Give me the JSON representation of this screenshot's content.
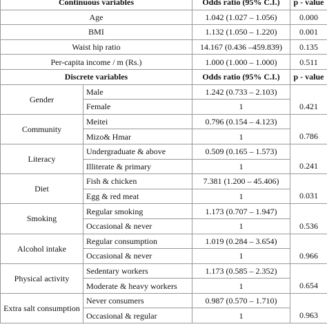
{
  "continuous": {
    "header": [
      "Continuous variables",
      "Odds ratio (95% C.I.)",
      "p - value"
    ],
    "rows": [
      [
        "Age",
        "1.042 (1.027 – 1.056)",
        "0.000"
      ],
      [
        "BMI",
        "1.132 (1.050 – 1.220)",
        "0.001"
      ],
      [
        "Waist hip ratio",
        "14.167 (0.436 –459.839)",
        "0.135"
      ],
      [
        "Per-capita income / m (Rs.)",
        "1.000 (1.000 – 1.000)",
        "0.511"
      ]
    ]
  },
  "discrete": {
    "header": [
      "Discrete variables",
      "Odds ratio (95% C.I.)",
      "p - value"
    ],
    "groups": [
      {
        "label": "Gender",
        "rows": [
          [
            "Male",
            "1.242 (0.733 – 2.103)"
          ],
          [
            "Female",
            "1"
          ]
        ],
        "p": "0.421"
      },
      {
        "label": "Community",
        "rows": [
          [
            "Meitei",
            "0.796 (0.154 – 4.123)"
          ],
          [
            "Mizo& Hmar",
            "1"
          ]
        ],
        "p": "0.786"
      },
      {
        "label": "Literacy",
        "rows": [
          [
            "Undergraduate & above",
            "0.509 (0.165 – 1.573)"
          ],
          [
            "Illiterate & primary",
            "1"
          ]
        ],
        "p": "0.241"
      },
      {
        "label": "Diet",
        "rows": [
          [
            "Fish & chicken",
            "7.381 (1.200 – 45.406)"
          ],
          [
            "Egg & red meat",
            "1"
          ]
        ],
        "p": "0.031"
      },
      {
        "label": "Smoking",
        "rows": [
          [
            "Regular smoking",
            "1.173 (0.707 – 1.947)"
          ],
          [
            "Occasional & never",
            "1"
          ]
        ],
        "p": "0.536"
      },
      {
        "label": "Alcohol intake",
        "rows": [
          [
            "Regular consumption",
            "1.019 (0.284 – 3.654)"
          ],
          [
            "Occasional & never",
            "1"
          ]
        ],
        "p": "0.966"
      },
      {
        "label": "Physical activity",
        "rows": [
          [
            "Sedentary workers",
            "1.173 (0.585 – 2.352)"
          ],
          [
            "Moderate & heavy workers",
            "1"
          ]
        ],
        "p": "0.654"
      },
      {
        "label": "Extra salt consumption",
        "rows": [
          [
            "Never consumers",
            "0.987 (0.570 – 1.710)"
          ],
          [
            "Occasional & regular",
            "1"
          ]
        ],
        "p": "0.963"
      }
    ]
  }
}
